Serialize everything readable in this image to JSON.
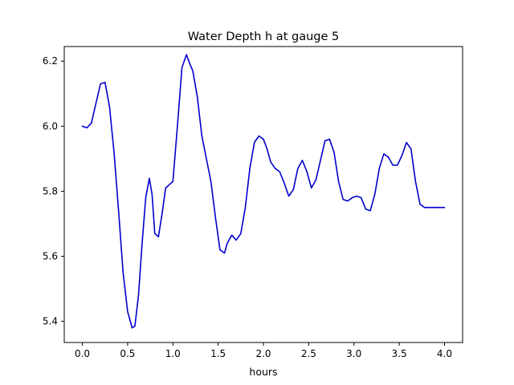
{
  "chart_data": {
    "type": "line",
    "title": "Water Depth h at gauge 5",
    "xlabel": "hours",
    "ylabel": "",
    "xlim": [
      -0.2,
      4.2
    ],
    "ylim": [
      5.335,
      6.245
    ],
    "xticks": [
      0.0,
      0.5,
      1.0,
      1.5,
      2.0,
      2.5,
      3.0,
      3.5,
      4.0
    ],
    "xtick_labels": [
      "0.0",
      "0.5",
      "1.0",
      "1.5",
      "2.0",
      "2.5",
      "3.0",
      "3.5",
      "4.0"
    ],
    "yticks": [
      5.4,
      5.6,
      5.8,
      6.0,
      6.2
    ],
    "ytick_labels": [
      "5.4",
      "5.6",
      "5.8",
      "6.0",
      "6.2"
    ],
    "grid": false,
    "series": [
      {
        "color": "#0000cc",
        "x": [
          0.0,
          0.05,
          0.1,
          0.15,
          0.2,
          0.25,
          0.3,
          0.35,
          0.4,
          0.45,
          0.5,
          0.55,
          0.58,
          0.62,
          0.66,
          0.7,
          0.74,
          0.77,
          0.8,
          0.84,
          0.88,
          0.92,
          0.96,
          1.0,
          1.05,
          1.1,
          1.15,
          1.19,
          1.22,
          1.27,
          1.32,
          1.37,
          1.42,
          1.47,
          1.52,
          1.57,
          1.6,
          1.65,
          1.7,
          1.75,
          1.8,
          1.85,
          1.9,
          1.95,
          2.0,
          2.04,
          2.08,
          2.13,
          2.18,
          2.23,
          2.28,
          2.33,
          2.38,
          2.43,
          2.48,
          2.53,
          2.58,
          2.63,
          2.68,
          2.73,
          2.78,
          2.83,
          2.88,
          2.93,
          2.98,
          3.03,
          3.08,
          3.13,
          3.18,
          3.23,
          3.28,
          3.33,
          3.38,
          3.43,
          3.48,
          3.53,
          3.58,
          3.63,
          3.68,
          3.73,
          3.78,
          3.83,
          3.88,
          3.93,
          3.97,
          4.0
        ],
        "y": [
          6.0,
          5.995,
          6.01,
          6.07,
          6.13,
          6.135,
          6.06,
          5.92,
          5.74,
          5.55,
          5.43,
          5.38,
          5.385,
          5.48,
          5.64,
          5.78,
          5.84,
          5.79,
          5.67,
          5.66,
          5.73,
          5.81,
          5.82,
          5.83,
          6.0,
          6.18,
          6.22,
          6.19,
          6.17,
          6.09,
          5.97,
          5.9,
          5.83,
          5.72,
          5.62,
          5.61,
          5.64,
          5.665,
          5.65,
          5.67,
          5.75,
          5.87,
          5.95,
          5.97,
          5.96,
          5.93,
          5.89,
          5.87,
          5.86,
          5.825,
          5.785,
          5.805,
          5.87,
          5.895,
          5.86,
          5.81,
          5.835,
          5.895,
          5.955,
          5.96,
          5.92,
          5.83,
          5.775,
          5.77,
          5.78,
          5.785,
          5.78,
          5.745,
          5.74,
          5.79,
          5.87,
          5.915,
          5.905,
          5.88,
          5.88,
          5.91,
          5.95,
          5.93,
          5.83,
          5.76,
          5.75,
          5.75,
          5.75,
          5.75,
          5.75,
          5.75
        ]
      }
    ]
  }
}
